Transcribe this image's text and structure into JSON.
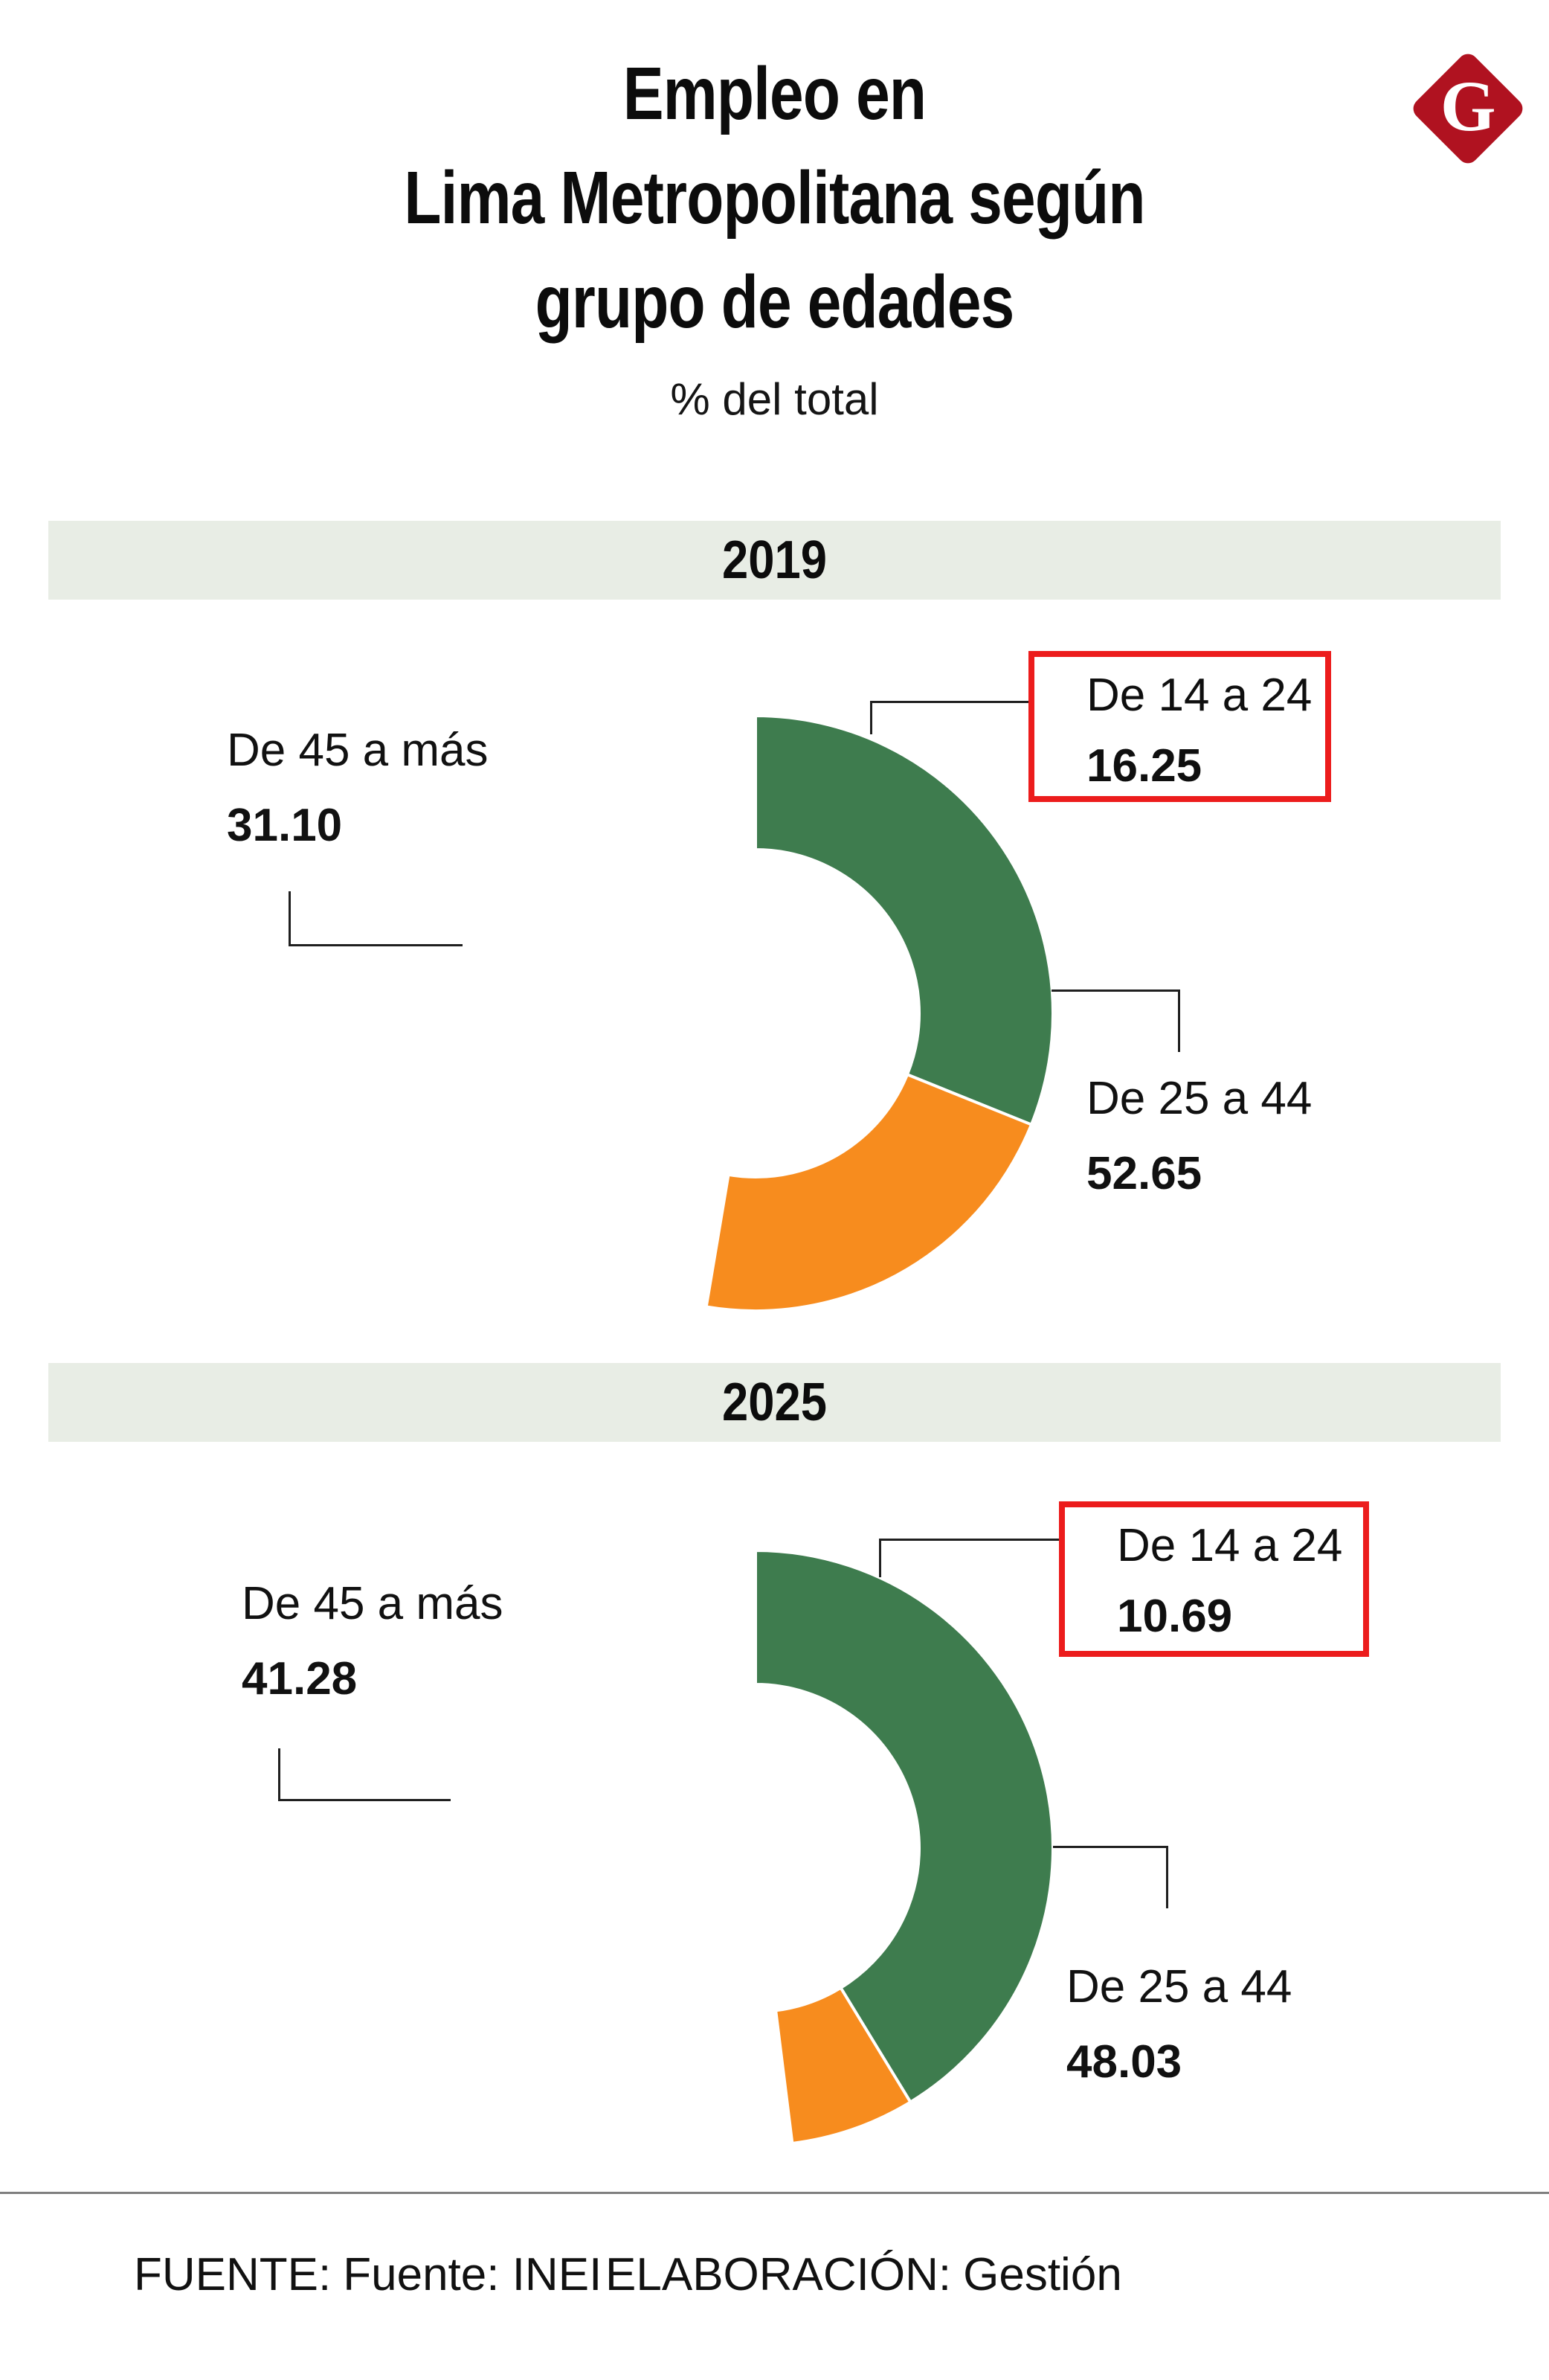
{
  "header": {
    "title_lines": [
      "Empleo en",
      "Lima Metropolitana según",
      "grupo de edades"
    ],
    "subtitle": "% del total"
  },
  "logo": {
    "letter": "G",
    "bg_color": "#B01220"
  },
  "chart_data": [
    {
      "type": "pie",
      "title": "2019",
      "categories": [
        "De 14 a 24",
        "De 25 a 44",
        "De 45 a más"
      ],
      "values": [
        16.25,
        52.65,
        31.1
      ],
      "value_labels": [
        "16.25",
        "52.65",
        "31.10"
      ],
      "colors": [
        "#6B6B6B",
        "#F78C1E",
        "#3E7C4E"
      ],
      "donut_hole_ratio": 0.55,
      "start_angle_deg": 0,
      "direction": "clockwise",
      "highlighted_category": "De 14 a 24",
      "highlight_box_color": "#EC1C1C",
      "legend_position": "callouts"
    },
    {
      "type": "pie",
      "title": "2025",
      "categories": [
        "De 14 a 24",
        "De 25 a 44",
        "De 45 a más"
      ],
      "values": [
        10.69,
        48.03,
        41.28
      ],
      "value_labels": [
        "10.69",
        "48.03",
        "41.28"
      ],
      "colors": [
        "#6B6B6B",
        "#F78C1E",
        "#3E7C4E"
      ],
      "donut_hole_ratio": 0.55,
      "start_angle_deg": 0,
      "direction": "clockwise",
      "highlighted_category": "De 14 a 24",
      "highlight_box_color": "#EC1C1C",
      "legend_position": "callouts"
    }
  ],
  "footer": {
    "source_label": "FUENTE:",
    "source_value": "Fuente: INEI",
    "elaboration_label": "ELABORACIÓN:",
    "elaboration_value": "Gestión"
  }
}
